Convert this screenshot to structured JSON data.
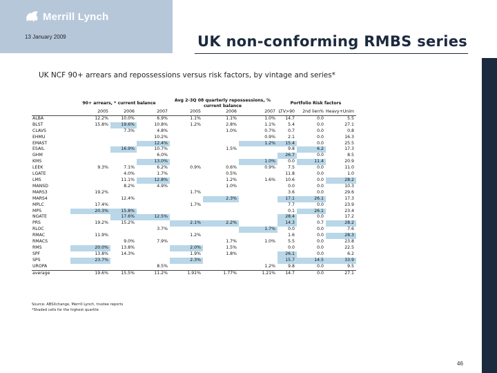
{
  "header": {
    "logo_text": "Merrill Lynch",
    "date": "13 January 2009",
    "title": "UK non-conforming RMBS series",
    "subtitle": "UK NCF 90+ arrears and repossessions versus risk factors, by vintage and series*"
  },
  "colors": {
    "logo_bg": "#b7c7da",
    "sidebar": "#1b2a3e",
    "highlight": "#b9d7e8"
  },
  "table": {
    "group_headers": [
      "90+ arrears, * current balance",
      "Avg 2-3Q 08 quarterly repossessions, % current balance",
      "Portfolio Risk factors"
    ],
    "columns": [
      "2005",
      "2006",
      "2007",
      "2005",
      "2006",
      "2007",
      "LTV>90",
      "2nd lien%",
      "Heavy+Unim"
    ],
    "rows": [
      {
        "name": "ALBA",
        "values": [
          "12.2%",
          "10.0%",
          "6.9%",
          "1.1%",
          "1.1%",
          "1.0%",
          "14.7",
          "0.0",
          "5.5"
        ]
      },
      {
        "name": "BLST",
        "values": [
          "15.8%",
          "19.6%",
          "10.8%",
          "1.2%",
          "2.8%",
          "1.1%",
          "5.4",
          "0.0",
          "27.1"
        ]
      },
      {
        "name": "CLAVS",
        "values": [
          "",
          "7.3%",
          "4.8%",
          "",
          "1.0%",
          "0.7%",
          "0.7",
          "0.0",
          "0.8"
        ]
      },
      {
        "name": "EHMU",
        "values": [
          "",
          "",
          "10.2%",
          "",
          "",
          "0.9%",
          "2.1",
          "0.0",
          "16.3"
        ]
      },
      {
        "name": "EMAST",
        "values": [
          "",
          "",
          "12.4%",
          "",
          "",
          "1.2%",
          "15.4",
          "0.0",
          "25.5"
        ]
      },
      {
        "name": "ESAIL",
        "values": [
          "",
          "16.9%",
          "10.7%",
          "",
          "1.5%",
          "",
          "9.8",
          "6.2",
          "17.3"
        ]
      },
      {
        "name": "GHM",
        "values": [
          "",
          "",
          "6.0%",
          "",
          "",
          "",
          "26.7",
          "0.0",
          "8.5"
        ]
      },
      {
        "name": "KMS",
        "values": [
          "",
          "",
          "13.0%",
          "",
          "",
          "1.0%",
          "0.0",
          "11.4",
          "20.9"
        ]
      },
      {
        "name": "LEEK",
        "values": [
          "9.3%",
          "7.1%",
          "6.2%",
          "0.9%",
          "0.6%",
          "0.9%",
          "7.5",
          "0.0",
          "11.0"
        ]
      },
      {
        "name": "LGATE",
        "values": [
          "",
          "4.0%",
          "1.7%",
          "",
          "0.5%",
          "",
          "11.8",
          "0.0",
          "1.0"
        ]
      },
      {
        "name": "LMS",
        "values": [
          "",
          "11.1%",
          "12.8%",
          "",
          "1.2%",
          "1.6%",
          "10.6",
          "0.0",
          "28.2"
        ]
      },
      {
        "name": "MANSD",
        "values": [
          "",
          "8.2%",
          "4.9%",
          "",
          "1.0%",
          "",
          "0.0",
          "0.0",
          "10.3"
        ]
      },
      {
        "name": "MARS3",
        "values": [
          "19.2%",
          "",
          "",
          "1.7%",
          "",
          "",
          "3.6",
          "0.0",
          "29.6"
        ]
      },
      {
        "name": "MARS4",
        "values": [
          "",
          "12.4%",
          "",
          "",
          "2.3%",
          "",
          "17.1",
          "26.1",
          "17.3"
        ]
      },
      {
        "name": "MPLC",
        "values": [
          "17.4%",
          "",
          "",
          "1.7%",
          "",
          "",
          "7.7",
          "0.0",
          "23.9"
        ]
      },
      {
        "name": "MPS",
        "values": [
          "20.3%",
          "15.8%",
          "",
          "",
          "",
          "",
          "0.1",
          "26.1",
          "23.4"
        ]
      },
      {
        "name": "NGATE",
        "values": [
          "",
          "17.6%",
          "12.5%",
          "",
          "",
          "",
          "28.4",
          "0.0",
          "17.2"
        ]
      },
      {
        "name": "PRS",
        "values": [
          "19.2%",
          "15.2%",
          "",
          "2.1%",
          "2.2%",
          "",
          "14.3",
          "0.7",
          "28.2"
        ]
      },
      {
        "name": "RLOC",
        "values": [
          "",
          "",
          "3.7%",
          "",
          "",
          "1.7%",
          "0.0",
          "0.0",
          "7.6"
        ]
      },
      {
        "name": "RMAC",
        "values": [
          "11.9%",
          "",
          "",
          "1.2%",
          "",
          "",
          "1.6",
          "0.0",
          "28.3"
        ]
      },
      {
        "name": "RMACS",
        "values": [
          "",
          "9.0%",
          "7.9%",
          "",
          "1.7%",
          "1.0%",
          "5.5",
          "0.0",
          "23.8"
        ]
      },
      {
        "name": "RMS",
        "values": [
          "20.0%",
          "13.8%",
          "",
          "2.0%",
          "1.5%",
          "",
          "0.0",
          "0.0",
          "22.5"
        ]
      },
      {
        "name": "SPF",
        "values": [
          "13.8%",
          "14.3%",
          "",
          "1.9%",
          "1.8%",
          "",
          "26.1",
          "0.0",
          "6.2"
        ]
      },
      {
        "name": "SPS",
        "values": [
          "23.7%",
          "",
          "",
          "2.3%",
          "",
          "",
          "15.7",
          "14.5",
          "33.9"
        ]
      },
      {
        "name": "UROPA",
        "values": [
          "",
          "",
          "8.5%",
          "",
          "",
          "1.2%",
          "9.8",
          "0.0",
          "9.5"
        ]
      }
    ],
    "average": {
      "name": "average",
      "values": [
        "19.6%",
        "15.5%",
        "11.2%",
        "1.91%",
        "1.77%",
        "1.21%",
        "14.7",
        "0.0",
        "27.1"
      ]
    },
    "highlighted": {
      "BLST": [
        1
      ],
      "EMAST": [
        2,
        5,
        6
      ],
      "ESAIL": [
        1,
        7
      ],
      "GHM": [
        6
      ],
      "KMS": [
        2,
        5,
        7
      ],
      "LMS": [
        2,
        8
      ],
      "MARS4": [
        4,
        6,
        7
      ],
      "MPS": [
        0,
        1,
        7
      ],
      "NGATE": [
        1,
        2,
        6
      ],
      "PRS": [
        3,
        4,
        6,
        8
      ],
      "RLOC": [
        5
      ],
      "RMAC": [
        8
      ],
      "RMS": [
        0,
        3
      ],
      "SPF": [
        6
      ],
      "SPS": [
        0,
        3,
        6,
        7,
        8
      ]
    }
  },
  "footnotes": [
    "Source: ABSXchange, Merrill Lynch, trustee reports",
    "*Shaded cells for the highest quartile"
  ],
  "page_number": "46"
}
